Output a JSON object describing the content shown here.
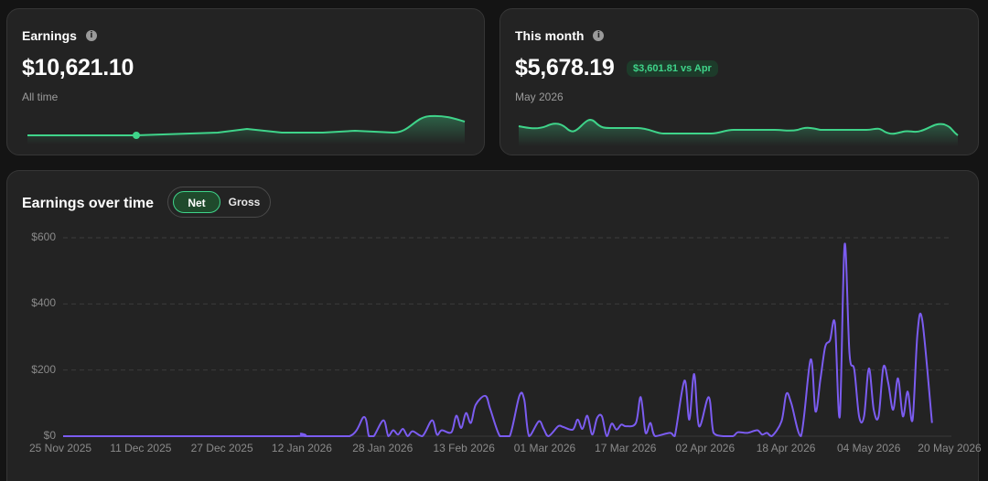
{
  "earnings_card": {
    "title": "Earnings",
    "value": "$10,621.10",
    "period": "All time"
  },
  "month_card": {
    "title": "This month",
    "value": "$5,678.19",
    "comparison_badge": "$3,601.81 vs Apr",
    "period": "May 2026"
  },
  "chart_card": {
    "title": "Earnings over time",
    "toggle": {
      "net_label": "Net",
      "gross_label": "Gross",
      "selected": "Net"
    }
  },
  "colors": {
    "accent_green": "#3fd48a",
    "line_purple": "#7b5cf0",
    "card_bg": "#232323"
  },
  "icons": [
    "info-icon"
  ],
  "chart_data": {
    "type": "line",
    "y_ticks": [
      "$0",
      "$200",
      "$400",
      "$600"
    ],
    "ylim": [
      0,
      600
    ],
    "x_ticks": [
      "25 Nov 2025",
      "11 Dec 2025",
      "27 Dec 2025",
      "12 Jan 2026",
      "28 Jan 2026",
      "13 Feb 2026",
      "01 Mar 2026",
      "17 Mar 2026",
      "02 Apr 2026",
      "18 Apr 2026",
      "04 May 2026",
      "20 May 2026"
    ],
    "x_start": "2025-11-25",
    "x_end": "2026-05-27",
    "grid": true,
    "series": [
      {
        "points": [
          [
            "2025-11-25",
            0
          ],
          [
            "2025-12-20",
            0
          ],
          [
            "2026-01-12",
            0
          ],
          [
            "2026-01-13",
            8
          ],
          [
            "2026-01-14",
            0
          ],
          [
            "2026-01-23",
            0
          ],
          [
            "2026-01-26",
            58
          ],
          [
            "2026-01-27",
            0
          ],
          [
            "2026-01-28",
            0
          ],
          [
            "2026-01-30",
            48
          ],
          [
            "2026-01-31",
            0
          ],
          [
            "2026-02-01",
            18
          ],
          [
            "2026-02-02",
            5
          ],
          [
            "2026-02-03",
            22
          ],
          [
            "2026-02-04",
            0
          ],
          [
            "2026-02-05",
            15
          ],
          [
            "2026-02-07",
            0
          ],
          [
            "2026-02-09",
            48
          ],
          [
            "2026-02-10",
            5
          ],
          [
            "2026-02-11",
            18
          ],
          [
            "2026-02-13",
            12
          ],
          [
            "2026-02-14",
            62
          ],
          [
            "2026-02-15",
            25
          ],
          [
            "2026-02-16",
            70
          ],
          [
            "2026-02-17",
            40
          ],
          [
            "2026-02-18",
            95
          ],
          [
            "2026-02-20",
            122
          ],
          [
            "2026-02-21",
            82
          ],
          [
            "2026-02-23",
            0
          ],
          [
            "2026-02-25",
            0
          ],
          [
            "2026-02-27",
            122
          ],
          [
            "2026-02-28",
            110
          ],
          [
            "2026-03-01",
            0
          ],
          [
            "2026-03-03",
            45
          ],
          [
            "2026-03-04",
            22
          ],
          [
            "2026-03-05",
            0
          ],
          [
            "2026-03-07",
            30
          ],
          [
            "2026-03-08",
            28
          ],
          [
            "2026-03-10",
            20
          ],
          [
            "2026-03-11",
            50
          ],
          [
            "2026-03-12",
            22
          ],
          [
            "2026-03-13",
            62
          ],
          [
            "2026-03-14",
            5
          ],
          [
            "2026-03-15",
            55
          ],
          [
            "2026-03-16",
            60
          ],
          [
            "2026-03-17",
            0
          ],
          [
            "2026-03-18",
            38
          ],
          [
            "2026-03-19",
            20
          ],
          [
            "2026-03-20",
            35
          ],
          [
            "2026-03-21",
            30
          ],
          [
            "2026-03-23",
            40
          ],
          [
            "2026-03-24",
            118
          ],
          [
            "2026-03-25",
            10
          ],
          [
            "2026-03-26",
            40
          ],
          [
            "2026-03-27",
            0
          ],
          [
            "2026-03-30",
            10
          ],
          [
            "2026-03-31",
            0
          ],
          [
            "2026-04-02",
            168
          ],
          [
            "2026-04-03",
            50
          ],
          [
            "2026-04-04",
            188
          ],
          [
            "2026-04-05",
            30
          ],
          [
            "2026-04-07",
            118
          ],
          [
            "2026-04-08",
            10
          ],
          [
            "2026-04-10",
            0
          ],
          [
            "2026-04-12",
            0
          ],
          [
            "2026-04-13",
            12
          ],
          [
            "2026-04-15",
            10
          ],
          [
            "2026-04-17",
            18
          ],
          [
            "2026-04-18",
            5
          ],
          [
            "2026-04-19",
            10
          ],
          [
            "2026-04-20",
            0
          ],
          [
            "2026-04-22",
            45
          ],
          [
            "2026-04-23",
            128
          ],
          [
            "2026-04-24",
            100
          ],
          [
            "2026-04-26",
            0
          ],
          [
            "2026-04-28",
            232
          ],
          [
            "2026-04-29",
            75
          ],
          [
            "2026-04-30",
            170
          ],
          [
            "2026-05-01",
            270
          ],
          [
            "2026-05-02",
            290
          ],
          [
            "2026-05-03",
            340
          ],
          [
            "2026-05-04",
            60
          ],
          [
            "2026-05-05",
            580
          ],
          [
            "2026-05-06",
            250
          ],
          [
            "2026-05-07",
            200
          ],
          [
            "2026-05-08",
            58
          ],
          [
            "2026-05-09",
            60
          ],
          [
            "2026-05-10",
            205
          ],
          [
            "2026-05-11",
            80
          ],
          [
            "2026-05-12",
            60
          ],
          [
            "2026-05-13",
            210
          ],
          [
            "2026-05-14",
            160
          ],
          [
            "2026-05-15",
            80
          ],
          [
            "2026-05-16",
            175
          ],
          [
            "2026-05-17",
            60
          ],
          [
            "2026-05-18",
            135
          ],
          [
            "2026-05-19",
            50
          ],
          [
            "2026-05-20",
            310
          ],
          [
            "2026-05-21",
            350
          ],
          [
            "2026-05-23",
            40
          ]
        ]
      }
    ]
  }
}
